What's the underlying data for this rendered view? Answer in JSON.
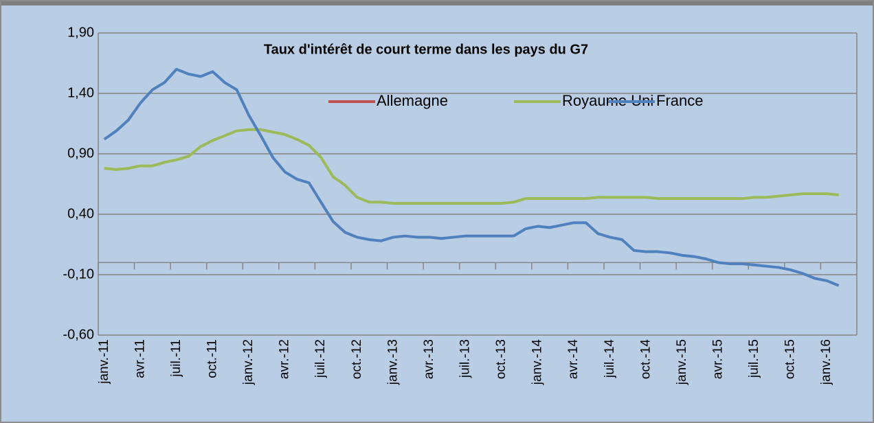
{
  "chart_data": {
    "type": "line",
    "title": "Taux d'intérêt de court terme dans les pays du G7",
    "categories": [
      "janv.-11",
      null,
      null,
      "avr.-11",
      null,
      null,
      "juil.-11",
      null,
      null,
      "oct.-11",
      null,
      null,
      "janv.-12",
      null,
      null,
      "avr.-12",
      null,
      null,
      "juil.-12",
      null,
      null,
      "oct.-12",
      null,
      null,
      "janv.-13",
      null,
      null,
      "avr.-13",
      null,
      null,
      "juil.-13",
      null,
      null,
      "oct.-13",
      null,
      null,
      "janv.-14",
      null,
      null,
      "avr.-14",
      null,
      null,
      "juil.-14",
      null,
      null,
      "oct.-14",
      null,
      null,
      "janv.-15",
      null,
      null,
      "avr.-15",
      null,
      null,
      "juil.-15",
      null,
      null,
      "oct.-15",
      null,
      null,
      "janv.-16",
      null,
      null
    ],
    "series": [
      {
        "name": "Allemagne",
        "color": "#c0504d",
        "values": [
          null,
          null,
          null,
          null,
          null,
          null,
          null,
          null,
          null,
          null,
          null,
          null,
          null,
          null,
          null,
          null,
          null,
          null,
          null,
          null,
          null,
          null,
          null,
          null,
          null,
          null,
          null,
          null,
          null,
          null,
          null,
          null,
          null,
          null,
          null,
          null,
          null,
          null,
          null,
          null,
          null,
          null,
          null,
          null,
          null,
          null,
          null,
          null,
          null,
          null,
          null,
          null,
          null,
          null,
          null,
          null,
          null,
          null,
          null,
          null,
          null,
          null,
          null
        ]
      },
      {
        "name": "Royaume Uni",
        "color": "#9bbb59",
        "values": [
          0.78,
          0.77,
          0.78,
          0.8,
          0.8,
          0.83,
          0.85,
          0.88,
          0.96,
          1.01,
          1.05,
          1.09,
          1.1,
          1.1,
          1.08,
          1.06,
          1.02,
          0.97,
          0.87,
          0.71,
          0.64,
          0.54,
          0.5,
          0.5,
          0.49,
          0.49,
          0.49,
          0.49,
          0.49,
          0.49,
          0.49,
          0.49,
          0.49,
          0.49,
          0.5,
          0.53,
          0.53,
          0.53,
          0.53,
          0.53,
          0.53,
          0.54,
          0.54,
          0.54,
          0.54,
          0.54,
          0.53,
          0.53,
          0.53,
          0.53,
          0.53,
          0.53,
          0.53,
          0.53,
          0.54,
          0.54,
          0.55,
          0.56,
          0.57,
          0.57,
          0.57,
          0.56,
          null
        ]
      },
      {
        "name": "France",
        "color": "#4f81bd",
        "values": [
          1.02,
          1.09,
          1.18,
          1.32,
          1.43,
          1.49,
          1.6,
          1.56,
          1.54,
          1.58,
          1.49,
          1.43,
          1.22,
          1.05,
          0.87,
          0.75,
          0.69,
          0.66,
          0.5,
          0.34,
          0.25,
          0.21,
          0.19,
          0.18,
          0.21,
          0.22,
          0.21,
          0.21,
          0.2,
          0.21,
          0.22,
          0.22,
          0.22,
          0.22,
          0.22,
          0.28,
          0.3,
          0.29,
          0.31,
          0.33,
          0.33,
          0.24,
          0.21,
          0.19,
          0.1,
          0.09,
          0.09,
          0.08,
          0.06,
          0.05,
          0.03,
          0.0,
          -0.01,
          -0.01,
          -0.02,
          -0.03,
          -0.04,
          -0.06,
          -0.09,
          -0.13,
          -0.15,
          -0.19,
          null
        ]
      }
    ],
    "ylim": [
      -0.6,
      1.9
    ],
    "yticks": [
      {
        "value": -0.6,
        "label": "-0,60"
      },
      {
        "value": -0.1,
        "label": "-0,10"
      },
      {
        "value": 0.4,
        "label": "0,40"
      },
      {
        "value": 0.9,
        "label": "0,90"
      },
      {
        "value": 1.4,
        "label": "1,40"
      },
      {
        "value": 1.9,
        "label": "1,90"
      }
    ],
    "grid": true
  }
}
